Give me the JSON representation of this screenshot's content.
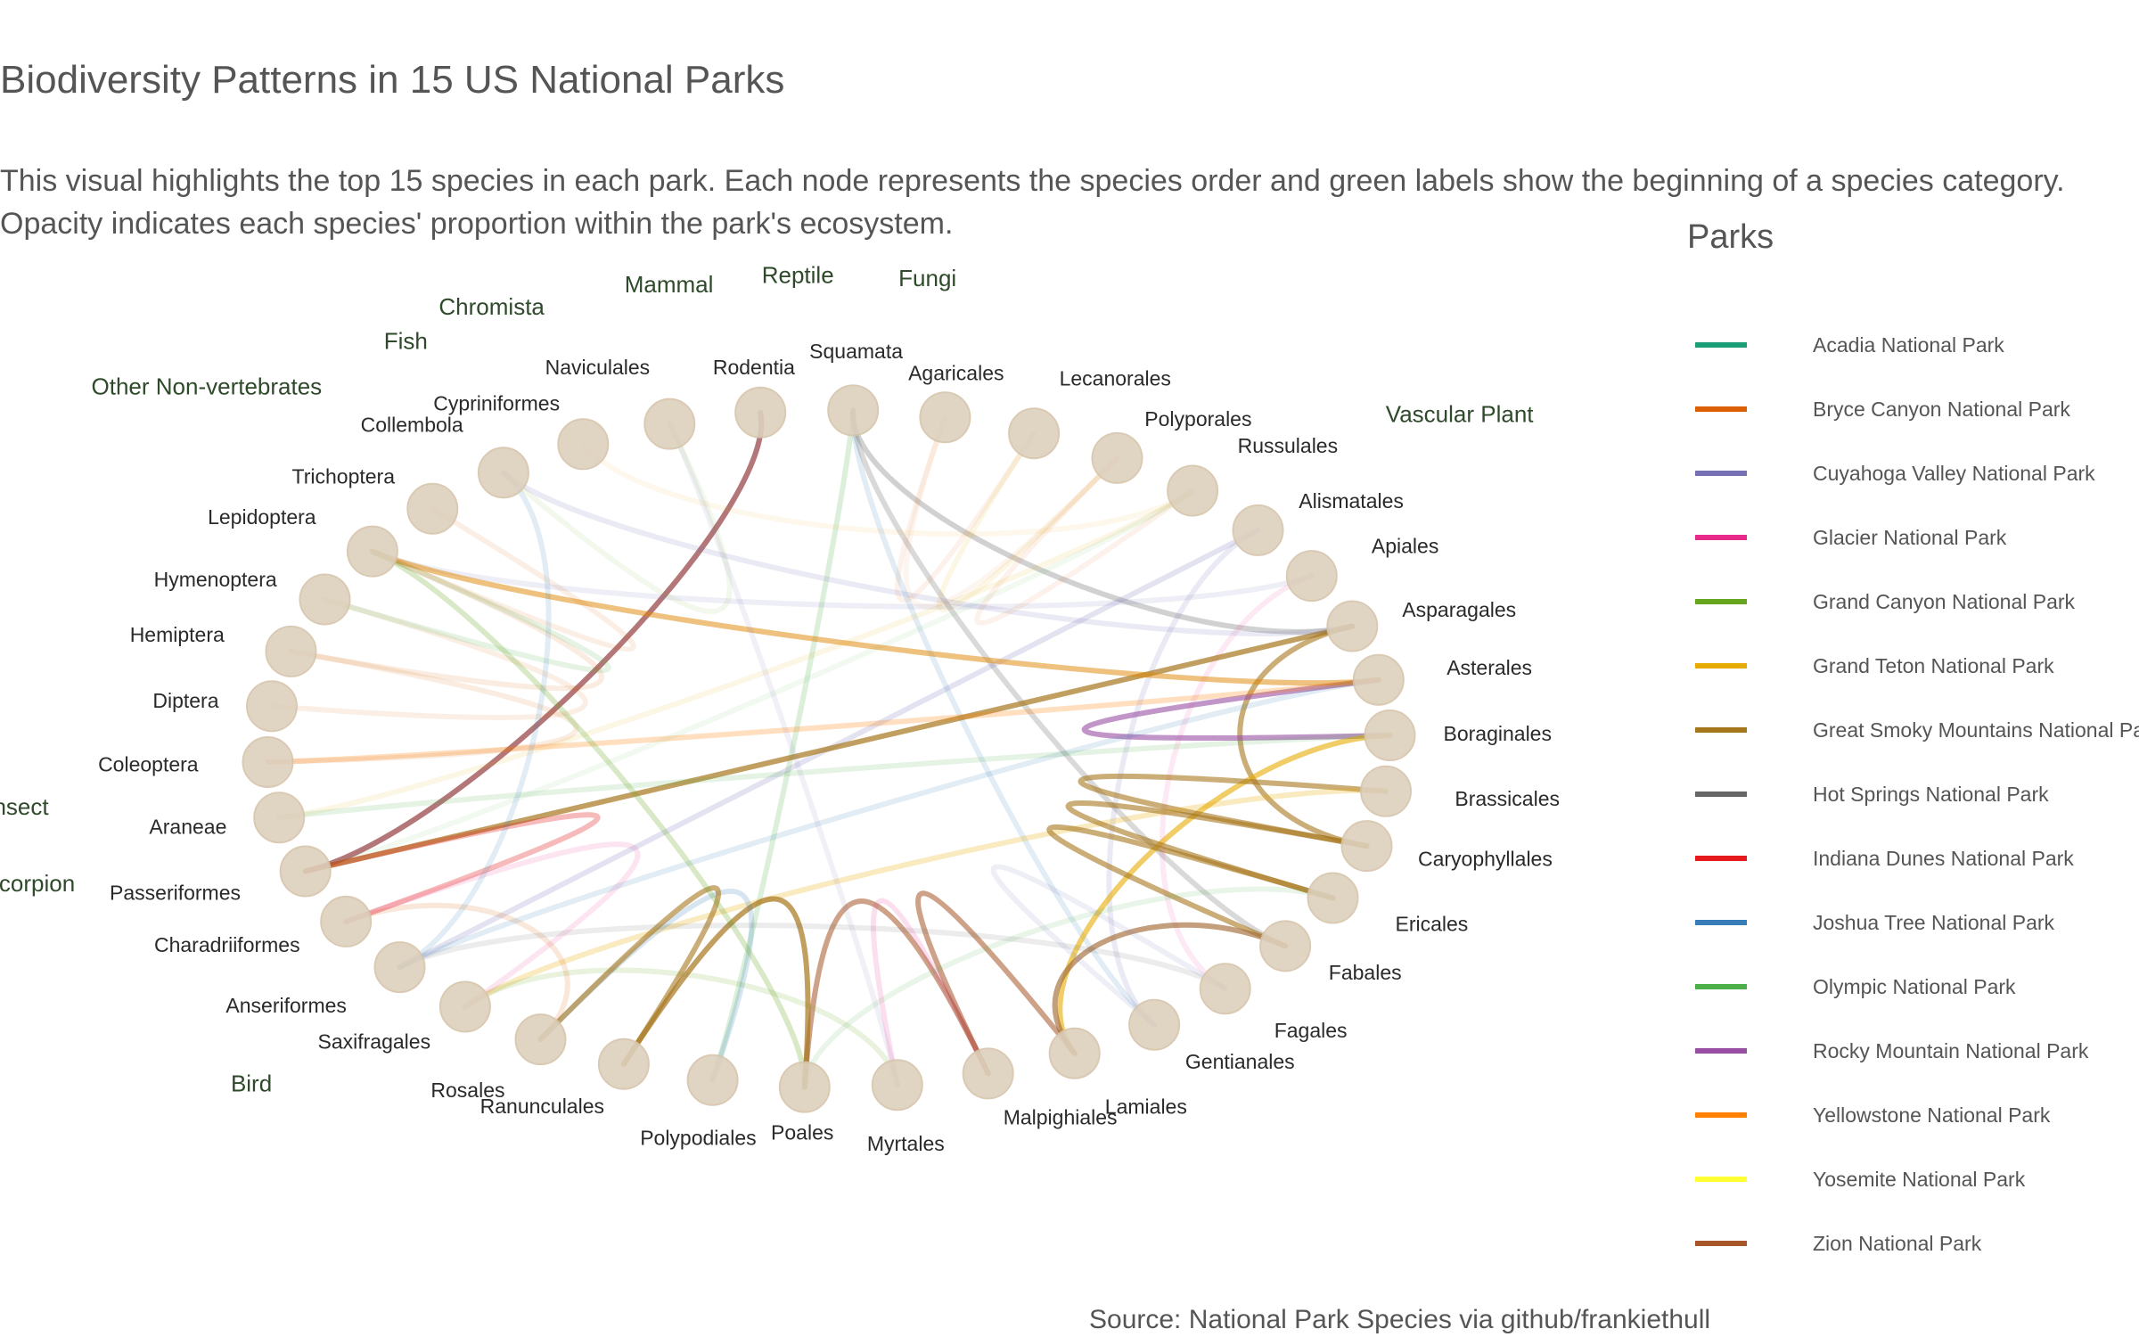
{
  "chart_data": {
    "type": "chord",
    "title": "Biodiversity Patterns in 15 US National Parks",
    "subtitle_lines": [
      "This visual highlights the top 15 species in each park. Each node represents the species order and green labels show the beginning of a species category.",
      "Opacity indicates each species' proportion within the park's ecosystem."
    ],
    "source": "Source: National Park Species via github/frankiethull",
    "legend_title": "Parks",
    "legend": [
      {
        "name": "Acadia National Park",
        "color": "#1b9e77"
      },
      {
        "name": "Bryce Canyon National Park",
        "color": "#d95f02"
      },
      {
        "name": "Cuyahoga Valley National Park",
        "color": "#7570b3"
      },
      {
        "name": "Glacier National Park",
        "color": "#e7298a"
      },
      {
        "name": "Grand Canyon National Park",
        "color": "#66a61e"
      },
      {
        "name": "Grand Teton National Park",
        "color": "#e6ab02"
      },
      {
        "name": "Great Smoky Mountains National Park",
        "color": "#a6761d"
      },
      {
        "name": "Hot Springs National Park",
        "color": "#666666"
      },
      {
        "name": "Indiana Dunes National Park",
        "color": "#e41a1c"
      },
      {
        "name": "Joshua Tree National Park",
        "color": "#377eb8"
      },
      {
        "name": "Olympic National Park",
        "color": "#4daf4a"
      },
      {
        "name": "Rocky Mountain National Park",
        "color": "#984ea3"
      },
      {
        "name": "Yellowstone National Park",
        "color": "#ff7f00"
      },
      {
        "name": "Yosemite National Park",
        "color": "#ffff33"
      },
      {
        "name": "Zion National Park",
        "color": "#a65628"
      }
    ],
    "nodes": [
      "Rodentia",
      "Squamata",
      "Agaricales",
      "Lecanorales",
      "Polyporales",
      "Russulales",
      "Alismatales",
      "Apiales",
      "Asparagales",
      "Asterales",
      "Boraginales",
      "Brassicales",
      "Caryophyllales",
      "Ericales",
      "Fabales",
      "Fagales",
      "Gentianales",
      "Lamiales",
      "Malpighiales",
      "Myrtales",
      "Poales",
      "Polypodiales",
      "Ranunculales",
      "Rosales",
      "Saxifragales",
      "Anseriformes",
      "Charadriiformes",
      "Passeriformes",
      "Araneae",
      "Coleoptera",
      "Diptera",
      "Hemiptera",
      "Hymenoptera",
      "Lepidoptera",
      "Trichoptera",
      "Collembola",
      "Cypriniformes",
      "Naviculales"
    ],
    "categories": [
      {
        "name": "Mammal",
        "start": "Rodentia"
      },
      {
        "name": "Reptile",
        "start": "Squamata"
      },
      {
        "name": "Fungi",
        "start": "Agaricales"
      },
      {
        "name": "Vascular Plant",
        "start": "Alismatales"
      },
      {
        "name": "Bird",
        "start": "Anseriformes"
      },
      {
        "name": "Spider/Scorpion",
        "start": "Araneae"
      },
      {
        "name": "Insect",
        "start": "Coleoptera"
      },
      {
        "name": "Other Non-vertebrates",
        "start": "Collembola"
      },
      {
        "name": "Fish",
        "start": "Cypriniformes"
      },
      {
        "name": "Chromista",
        "start": "Naviculales"
      }
    ],
    "links": [
      {
        "source": "Rodentia",
        "target": "Passeriformes",
        "park": "Zion National Park",
        "proportion": 0.7
      },
      {
        "source": "Rodentia",
        "target": "Passeriformes",
        "park": "Rocky Mountain National Park",
        "proportion": 0.3
      },
      {
        "source": "Squamata",
        "target": "Asparagales",
        "park": "Hot Springs National Park",
        "proportion": 0.3
      },
      {
        "source": "Squamata",
        "target": "Fabales",
        "park": "Hot Springs National Park",
        "proportion": 0.25
      },
      {
        "source": "Squamata",
        "target": "Polypodiales",
        "park": "Olympic National Park",
        "proportion": 0.2
      },
      {
        "source": "Squamata",
        "target": "Gentianales",
        "park": "Joshua Tree National Park",
        "proportion": 0.15
      },
      {
        "source": "Agaricales",
        "target": "Lecanorales",
        "park": "Bryce Canyon National Park",
        "proportion": 0.08
      },
      {
        "source": "Lecanorales",
        "target": "Polyporales",
        "park": "Grand Teton National Park",
        "proportion": 0.1
      },
      {
        "source": "Russulales",
        "target": "Araneae",
        "park": "Grand Teton National Park",
        "proportion": 0.1
      },
      {
        "source": "Russulales",
        "target": "Passeriformes",
        "park": "Olympic National Park",
        "proportion": 0.08
      },
      {
        "source": "Alismatales",
        "target": "Anseriformes",
        "park": "Cuyahoga Valley National Park",
        "proportion": 0.2
      },
      {
        "source": "Alismatales",
        "target": "Gentianales",
        "park": "Cuyahoga Valley National Park",
        "proportion": 0.15
      },
      {
        "source": "Apiales",
        "target": "Lepidoptera",
        "park": "Cuyahoga Valley National Park",
        "proportion": 0.12
      },
      {
        "source": "Apiales",
        "target": "Fagales",
        "park": "Glacier National Park",
        "proportion": 0.1
      },
      {
        "source": "Asparagales",
        "target": "Passeriformes",
        "park": "Great Smoky Mountains National Park",
        "proportion": 0.7
      },
      {
        "source": "Asparagales",
        "target": "Caryophyllales",
        "park": "Great Smoky Mountains National Park",
        "proportion": 0.6
      },
      {
        "source": "Asparagales",
        "target": "Collembola",
        "park": "Cuyahoga Valley National Park",
        "proportion": 0.15
      },
      {
        "source": "Asterales",
        "target": "Boraginales",
        "park": "Rocky Mountain National Park",
        "proportion": 0.6
      },
      {
        "source": "Asterales",
        "target": "Coleoptera",
        "park": "Yellowstone National Park",
        "proportion": 0.25
      },
      {
        "source": "Asterales",
        "target": "Lepidoptera",
        "park": "Grand Teton National Park",
        "proportion": 0.35
      },
      {
        "source": "Boraginales",
        "target": "Lamiales",
        "park": "Grand Teton National Park",
        "proportion": 0.6
      },
      {
        "source": "Brassicales",
        "target": "Caryophyllales",
        "park": "Great Smoky Mountains National Park",
        "proportion": 0.6
      },
      {
        "source": "Brassicales",
        "target": "Saxifragales",
        "park": "Grand Teton National Park",
        "proportion": 0.25
      },
      {
        "source": "Caryophyllales",
        "target": "Ericales",
        "park": "Great Smoky Mountains National Park",
        "proportion": 0.6
      },
      {
        "source": "Ericales",
        "target": "Fabales",
        "park": "Great Smoky Mountains National Park",
        "proportion": 0.6
      },
      {
        "source": "Fabales",
        "target": "Lamiales",
        "park": "Great Smoky Mountains National Park",
        "proportion": 0.6
      },
      {
        "source": "Fabales",
        "target": "Lamiales",
        "park": "Rocky Mountain National Park",
        "proportion": 0.15
      },
      {
        "source": "Lamiales",
        "target": "Malpighiales",
        "park": "Zion National Park",
        "proportion": 0.55
      },
      {
        "source": "Malpighiales",
        "target": "Poales",
        "park": "Zion National Park",
        "proportion": 0.55
      },
      {
        "source": "Myrtales",
        "target": "Saxifragales",
        "park": "Grand Canyon National Park",
        "proportion": 0.15
      },
      {
        "source": "Poales",
        "target": "Ranunculales",
        "park": "Great Smoky Mountains National Park",
        "proportion": 0.7
      },
      {
        "source": "Poales",
        "target": "Ericales",
        "park": "Olympic National Park",
        "proportion": 0.12
      },
      {
        "source": "Polypodiales",
        "target": "Rosales",
        "park": "Joshua Tree National Park",
        "proportion": 0.2
      },
      {
        "source": "Ranunculales",
        "target": "Rosales",
        "park": "Great Smoky Mountains National Park",
        "proportion": 0.6
      },
      {
        "source": "Rosales",
        "target": "Charadriiformes",
        "park": "Bryce Canyon National Park",
        "proportion": 0.15
      },
      {
        "source": "Saxifragales",
        "target": "Charadriiformes",
        "park": "Glacier National Park",
        "proportion": 0.12
      },
      {
        "source": "Anseriformes",
        "target": "Fagales",
        "park": "Hot Springs National Park",
        "proportion": 0.12
      },
      {
        "source": "Anseriformes",
        "target": "Asterales",
        "park": "Joshua Tree National Park",
        "proportion": 0.15
      },
      {
        "source": "Charadriiformes",
        "target": "Passeriformes",
        "park": "Indiana Dunes National Park",
        "proportion": 0.3
      },
      {
        "source": "Araneae",
        "target": "Boraginales",
        "park": "Olympic National Park",
        "proportion": 0.15
      },
      {
        "source": "Coleoptera",
        "target": "Hemiptera",
        "park": "Bryce Canyon National Park",
        "proportion": 0.12
      },
      {
        "source": "Diptera",
        "target": "Hymenoptera",
        "park": "Bryce Canyon National Park",
        "proportion": 0.1
      },
      {
        "source": "Hemiptera",
        "target": "Lepidoptera",
        "park": "Bryce Canyon National Park",
        "proportion": 0.12
      },
      {
        "source": "Hymenoptera",
        "target": "Lepidoptera",
        "park": "Olympic National Park",
        "proportion": 0.15
      },
      {
        "source": "Lepidoptera",
        "target": "Asterales",
        "park": "Bryce Canyon National Park",
        "proportion": 0.25
      },
      {
        "source": "Lepidoptera",
        "target": "Poales",
        "park": "Grand Canyon National Park",
        "proportion": 0.25
      },
      {
        "source": "Trichoptera",
        "target": "Lepidoptera",
        "park": "Bryce Canyon National Park",
        "proportion": 0.1
      },
      {
        "source": "Collembola",
        "target": "Anseriformes",
        "park": "Joshua Tree National Park",
        "proportion": 0.15
      },
      {
        "source": "Cypriniformes",
        "target": "Russulales",
        "park": "Grand Teton National Park",
        "proportion": 0.08
      },
      {
        "source": "Naviculales",
        "target": "Myrtales",
        "park": "Cuyahoga Valley National Park",
        "proportion": 0.1
      },
      {
        "source": "Naviculales",
        "target": "Collembola",
        "park": "Grand Canyon National Park",
        "proportion": 0.08
      },
      {
        "source": "Polyporales",
        "target": "Russulales",
        "park": "Bryce Canyon National Park",
        "proportion": 0.08
      },
      {
        "source": "Agaricales",
        "target": "Polyporales",
        "park": "Bryce Canyon National Park",
        "proportion": 0.06
      },
      {
        "source": "Gentianales",
        "target": "Fagales",
        "park": "Cuyahoga Valley National Park",
        "proportion": 0.12
      },
      {
        "source": "Myrtales",
        "target": "Malpighiales",
        "park": "Glacier National Park",
        "proportion": 0.15
      }
    ],
    "node_color": "#ddd0bd",
    "category_label_color": "#2e4a2a"
  }
}
